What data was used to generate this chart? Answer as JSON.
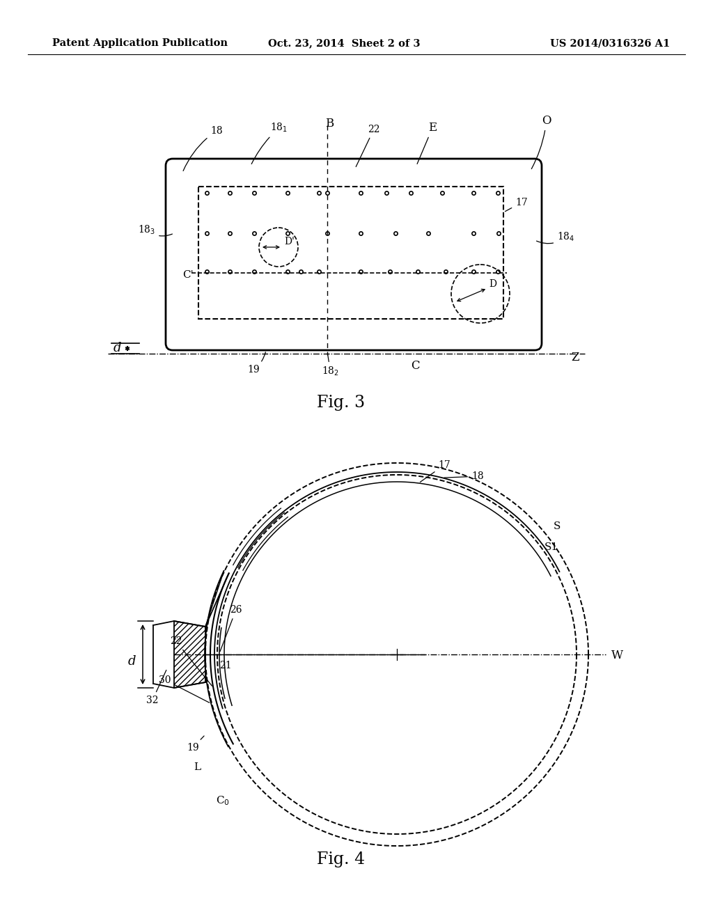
{
  "bg_color": "#ffffff",
  "header_left": "Patent Application Publication",
  "header_center": "Oct. 23, 2014  Sheet 2 of 3",
  "header_right": "US 2014/0316326 A1",
  "fig3_label": "Fig. 3",
  "fig4_label": "Fig. 4"
}
